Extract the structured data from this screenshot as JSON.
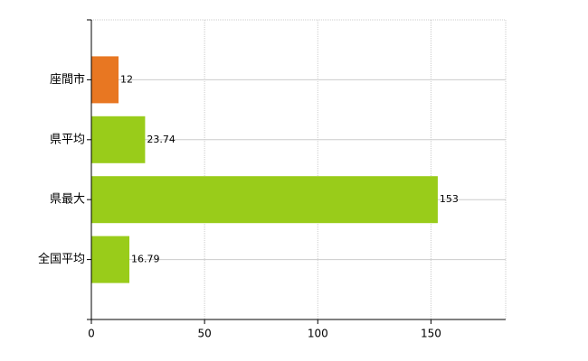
{
  "chart_data": {
    "type": "barh",
    "categories": [
      "座間市",
      "県平均",
      "県最大",
      "全国平均"
    ],
    "values": [
      12,
      23.74,
      153,
      16.79
    ],
    "colors": [
      "#e87722",
      "#99cc1a",
      "#99cc1a",
      "#99cc1a"
    ],
    "xlim": [
      0,
      183
    ],
    "xticks": [
      0,
      50,
      100,
      150
    ],
    "grid": true
  }
}
